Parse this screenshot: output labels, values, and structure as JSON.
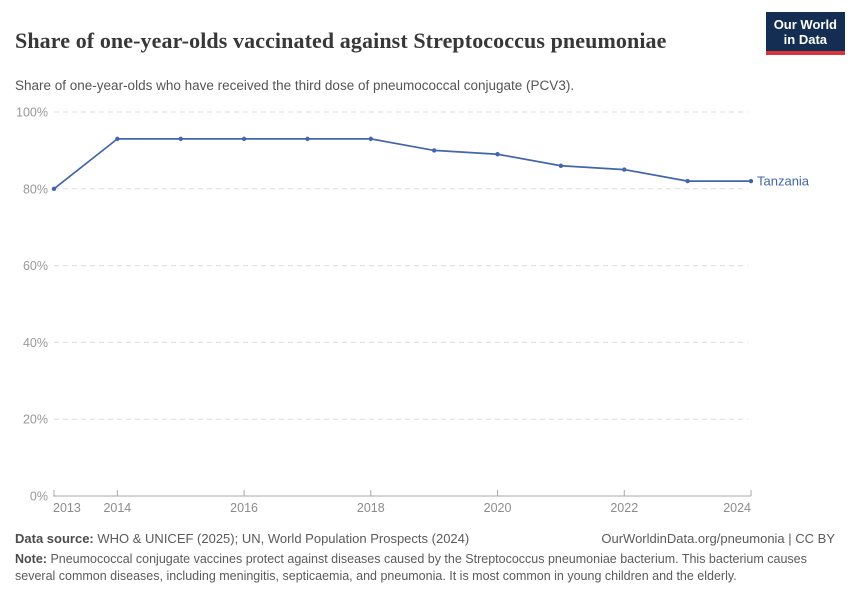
{
  "logo": {
    "line1": "Our World",
    "line2": "in Data"
  },
  "chart_data": {
    "type": "line",
    "title": "Share of one-year-olds vaccinated against Streptococcus pneumoniae",
    "subtitle": "Share of one-year-olds who have received the third dose of pneumococcal conjugate (PCV3).",
    "x": [
      2013,
      2014,
      2015,
      2016,
      2017,
      2018,
      2019,
      2020,
      2021,
      2022,
      2023,
      2024
    ],
    "series": [
      {
        "name": "Tanzania",
        "values": [
          80,
          93,
          93,
          93,
          93,
          93,
          90,
          89,
          86,
          85,
          82,
          82
        ],
        "color": "#4266ab"
      }
    ],
    "xlabel": "",
    "ylabel": "",
    "ylim": [
      0,
      100
    ],
    "yticks": [
      0,
      20,
      40,
      60,
      80,
      100
    ],
    "ytick_suffix": "%",
    "xticks": [
      2013,
      2014,
      2016,
      2018,
      2020,
      2022,
      2024
    ],
    "grid": "horizontal-dashed",
    "legend": "line-end-label"
  },
  "footer": {
    "datasource_label": "Data source:",
    "datasource_text": "WHO & UNICEF (2025); UN, World Population Prospects (2024)",
    "attribution": "OurWorldinData.org/pneumonia | CC BY",
    "note_label": "Note:",
    "note_text": "Pneumococcal conjugate vaccines protect against diseases caused by the Streptococcus pneumoniae bacterium. This bacterium causes several common diseases, including meningitis, septicaemia, and pneumonia. It is most common in young children and the elderly."
  },
  "colors": {
    "line": "#4266ab",
    "title": "#383838",
    "subtitle": "#555555",
    "axis_text": "#999999",
    "gridline": "#dcdcdc",
    "axis_line": "#a8a8a8",
    "logo_bg": "#132e52",
    "logo_bar": "#d8363a",
    "footer_text": "#5b5b5b"
  }
}
